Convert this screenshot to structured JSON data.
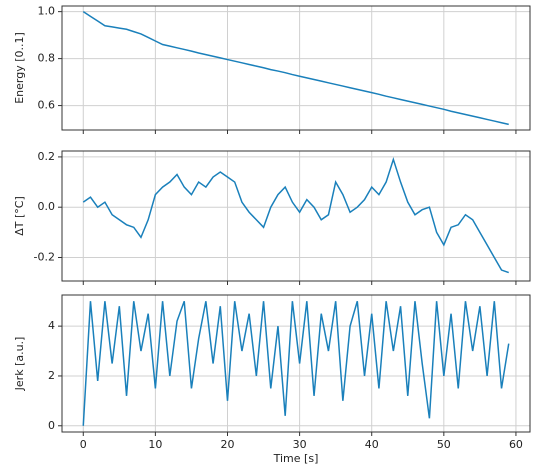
{
  "chart_data": [
    {
      "type": "line",
      "ylabel": "Energy [0..1]",
      "x": [
        0,
        1,
        2,
        3,
        4,
        5,
        6,
        7,
        8,
        9,
        10,
        11,
        12,
        13,
        14,
        15,
        16,
        17,
        18,
        19,
        20,
        21,
        22,
        23,
        24,
        25,
        26,
        27,
        28,
        29,
        30,
        31,
        32,
        33,
        34,
        35,
        36,
        37,
        38,
        39,
        40,
        41,
        42,
        43,
        44,
        45,
        46,
        47,
        48,
        49,
        50,
        51,
        52,
        53,
        54,
        55,
        56,
        57,
        58,
        59
      ],
      "series": [
        {
          "name": "Energy",
          "color": "#1a80bb",
          "values": [
            1.0,
            0.98,
            0.96,
            0.94,
            0.935,
            0.93,
            0.925,
            0.915,
            0.905,
            0.89,
            0.875,
            0.86,
            0.853,
            0.846,
            0.839,
            0.832,
            0.824,
            0.817,
            0.81,
            0.803,
            0.796,
            0.789,
            0.782,
            0.775,
            0.768,
            0.761,
            0.753,
            0.747,
            0.74,
            0.732,
            0.725,
            0.718,
            0.711,
            0.704,
            0.697,
            0.69,
            0.683,
            0.676,
            0.669,
            0.662,
            0.655,
            0.648,
            0.64,
            0.633,
            0.626,
            0.619,
            0.612,
            0.605,
            0.598,
            0.591,
            0.584,
            0.576,
            0.569,
            0.562,
            0.555,
            0.548,
            0.541,
            0.534,
            0.527,
            0.52
          ]
        }
      ],
      "xlim": [
        -2.95,
        61.95
      ],
      "xticks": [
        0,
        10,
        20,
        30,
        40,
        50,
        60
      ],
      "ylim": [
        0.496,
        1.024
      ],
      "yticks": [
        {
          "value": 0.6,
          "label": "0.6"
        },
        {
          "value": 0.8,
          "label": "0.8"
        },
        {
          "value": 1.0,
          "label": "1.0"
        }
      ],
      "grid": true
    },
    {
      "type": "line",
      "ylabel": "ΔT [°C]",
      "x": [
        0,
        1,
        2,
        3,
        4,
        5,
        6,
        7,
        8,
        9,
        10,
        11,
        12,
        13,
        14,
        15,
        16,
        17,
        18,
        19,
        20,
        21,
        22,
        23,
        24,
        25,
        26,
        27,
        28,
        29,
        30,
        31,
        32,
        33,
        34,
        35,
        36,
        37,
        38,
        39,
        40,
        41,
        42,
        43,
        44,
        45,
        46,
        47,
        48,
        49,
        50,
        51,
        52,
        53,
        54,
        55,
        56,
        57,
        58,
        59
      ],
      "series": [
        {
          "name": "ΔT",
          "color": "#1a80bb",
          "values": [
            0.02,
            0.04,
            0.0,
            0.02,
            -0.03,
            -0.05,
            -0.07,
            -0.08,
            -0.12,
            -0.05,
            0.05,
            0.08,
            0.1,
            0.13,
            0.08,
            0.05,
            0.1,
            0.08,
            0.12,
            0.14,
            0.12,
            0.1,
            0.02,
            -0.02,
            -0.05,
            -0.08,
            0.0,
            0.05,
            0.08,
            0.02,
            -0.02,
            0.03,
            0.0,
            -0.05,
            -0.03,
            0.1,
            0.05,
            -0.02,
            0.0,
            0.03,
            0.08,
            0.05,
            0.1,
            0.19,
            0.1,
            0.02,
            -0.03,
            -0.01,
            0.0,
            -0.1,
            -0.15,
            -0.08,
            -0.07,
            -0.03,
            -0.05,
            -0.1,
            -0.15,
            -0.2,
            -0.25,
            -0.26
          ]
        }
      ],
      "xlim": [
        -2.95,
        61.95
      ],
      "xticks": [
        0,
        10,
        20,
        30,
        40,
        50,
        60
      ],
      "ylim": [
        -0.2935,
        0.2235
      ],
      "yticks": [
        -0.2,
        {
          "value": 0.0,
          "label": "0.0"
        },
        0.2
      ],
      "grid": true
    },
    {
      "type": "line",
      "ylabel": "Jerk [a.u.]",
      "xlabel": "Time [s]",
      "x": [
        0,
        1,
        2,
        3,
        4,
        5,
        6,
        7,
        8,
        9,
        10,
        11,
        12,
        13,
        14,
        15,
        16,
        17,
        18,
        19,
        20,
        21,
        22,
        23,
        24,
        25,
        26,
        27,
        28,
        29,
        30,
        31,
        32,
        33,
        34,
        35,
        36,
        37,
        38,
        39,
        40,
        41,
        42,
        43,
        44,
        45,
        46,
        47,
        48,
        49,
        50,
        51,
        52,
        53,
        54,
        55,
        56,
        57,
        58,
        59
      ],
      "series": [
        {
          "name": "Jerk",
          "color": "#1a80bb",
          "values": [
            0,
            5,
            1.8,
            5,
            2.5,
            4.8,
            1.2,
            5,
            3,
            4.5,
            1.5,
            5,
            2,
            4.2,
            5,
            1.5,
            3.5,
            5,
            2.5,
            4.8,
            1,
            5,
            3,
            4.5,
            2,
            5,
            1.5,
            4,
            0.4,
            5,
            2.5,
            5,
            1.2,
            4.5,
            3,
            5,
            1,
            4,
            5,
            2,
            4.5,
            1.5,
            5,
            3,
            4.8,
            1.2,
            5,
            2.5,
            0.3,
            5,
            2,
            4.5,
            1.5,
            5,
            3,
            4.8,
            2,
            5,
            1.5,
            3.3
          ]
        }
      ],
      "xlim": [
        -2.95,
        61.95
      ],
      "xticks": [
        0,
        10,
        20,
        30,
        40,
        50,
        60
      ],
      "ylim": [
        -0.25,
        5.25
      ],
      "yticks": [
        0,
        2,
        4
      ],
      "grid": true
    }
  ]
}
